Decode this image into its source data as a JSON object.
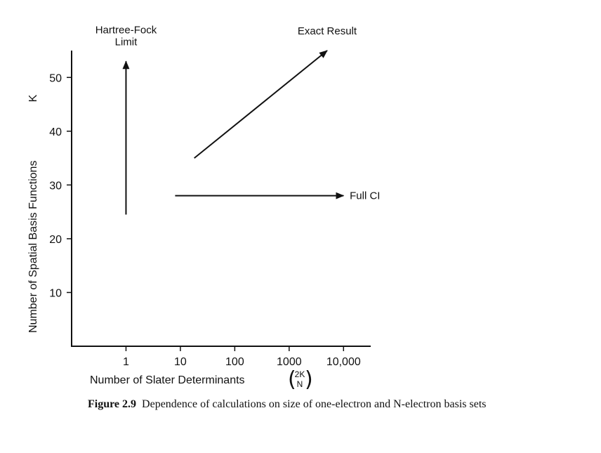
{
  "chart_data": {
    "type": "line",
    "xlabel": "Number of Slater Determinants",
    "xlabel_binomial": {
      "top": "2K",
      "bottom": "N"
    },
    "ylabel": "Number of Spatial Basis Functions",
    "ylabel_symbol": "K",
    "x_scale": "log",
    "x_ticks": [
      "1",
      "10",
      "100",
      "1000",
      "10,000"
    ],
    "y_ticks": [
      "10",
      "20",
      "30",
      "40",
      "50"
    ],
    "xlim": [
      0.1,
      31600
    ],
    "ylim": [
      0,
      55
    ],
    "grid": false,
    "series": [
      {
        "x": [
          1,
          1
        ],
        "y": [
          24.5,
          53
        ]
      },
      {
        "x": [
          8,
          10000
        ],
        "y": [
          28,
          28
        ]
      },
      {
        "x": [
          18,
          5000
        ],
        "y": [
          35,
          55
        ]
      }
    ],
    "annotations": [
      {
        "lines": [
          "Hartree-Fock",
          "Limit"
        ],
        "x": 1,
        "y": 56
      },
      {
        "lines": [
          "Full CI"
        ],
        "x": 13000,
        "y": 28
      },
      {
        "lines": [
          "Exact Result"
        ],
        "x": 5000,
        "y": 58
      }
    ]
  },
  "caption": {
    "label": "Figure 2.9",
    "text": "Dependence of calculations on size of one-electron and N-electron basis sets"
  }
}
